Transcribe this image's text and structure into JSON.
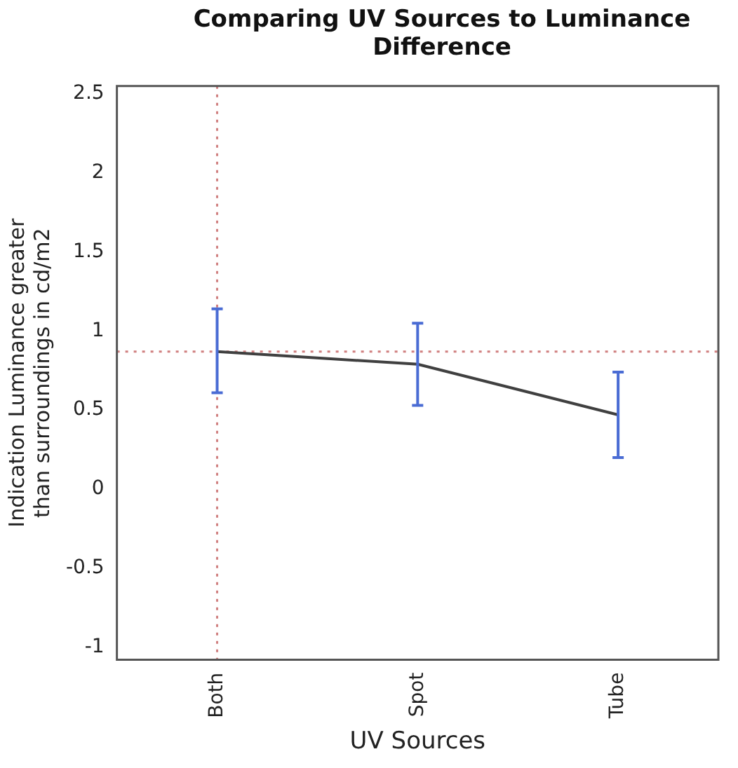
{
  "chart_data": {
    "type": "line",
    "title": "Comparing UV Sources to Luminance Difference",
    "xlabel": "UV Sources",
    "ylabel": "Indication Luminance greater than surroundings in cd/m2",
    "categories": [
      "Both",
      "Spot",
      "Tube"
    ],
    "series": [
      {
        "color": "#404040",
        "values": [
          0.87,
          0.79,
          0.47
        ],
        "errors": [
          [
            0.61,
            1.14
          ],
          [
            0.53,
            1.05
          ],
          [
            0.2,
            0.74
          ]
        ]
      }
    ],
    "ylim": [
      -1.08,
      2.55
    ],
    "yticks": [
      -1,
      -0.5,
      0,
      0.5,
      1,
      1.5,
      2,
      2.5
    ],
    "grid": false,
    "legend": false,
    "marker": "none",
    "ref_lines": [
      {
        "axis": "y",
        "value": 0.87,
        "color": "#d08080",
        "line_style": "dotted"
      },
      {
        "axis": "x",
        "value": "Both",
        "color": "#d08080",
        "line_style": "dotted"
      }
    ]
  }
}
